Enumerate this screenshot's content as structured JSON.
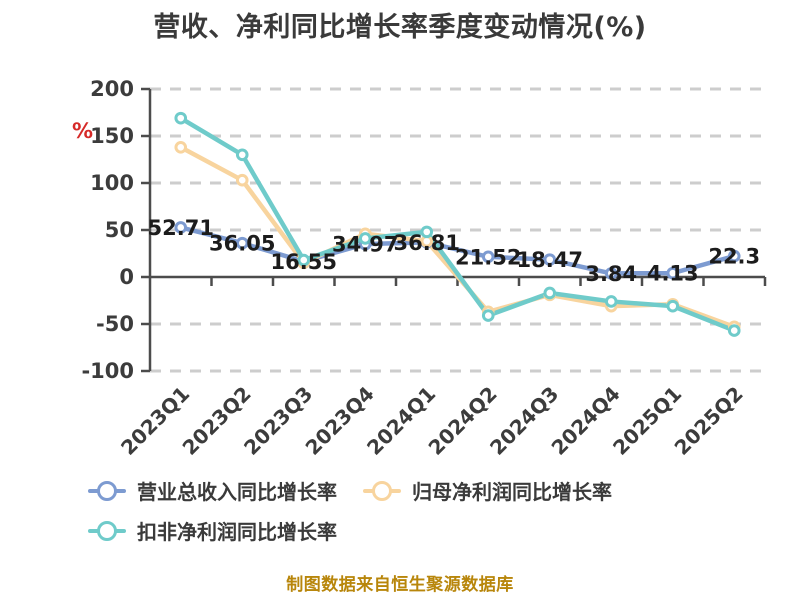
{
  "title": "营收、净利同比增长率季度变动情况(%)",
  "unit_marker": "%",
  "footer": "制图数据来自恒生聚源数据库",
  "colors": {
    "axis": "#4c4c4c",
    "grid": "#cdcdcd",
    "tick_text": "#3c3c3c",
    "data_label": "#1c1c1c",
    "title": "#3a3a3a",
    "footer": "#b8860b",
    "unit": "#d62a28",
    "dot_fill": "#ffffff"
  },
  "chart_data": {
    "type": "line",
    "title": "营收、净利同比增长率季度变动情况(%)",
    "xlabel": "",
    "ylabel": "%",
    "ylim": [
      -100,
      200
    ],
    "yticks": [
      200,
      150,
      100,
      50,
      0,
      -50,
      -100
    ],
    "grid": true,
    "grid_style": "dashed",
    "legend_position": "bottom",
    "categories": [
      "2023Q1",
      "2023Q2",
      "2023Q3",
      "2023Q4",
      "2024Q1",
      "2024Q2",
      "2024Q3",
      "2024Q4",
      "2025Q1",
      "2025Q2"
    ],
    "series": [
      {
        "key": "revenue-yoy",
        "name": "营业总收入同比增长率",
        "color": "#7d9bd1",
        "labels_shown": true,
        "values": [
          52.71,
          36.05,
          16.55,
          34.97,
          36.81,
          21.52,
          18.47,
          3.84,
          4.13,
          22.3
        ]
      },
      {
        "key": "net-profit-yoy",
        "name": "归母净利润同比增长率",
        "color": "#f8d49e",
        "labels_shown": false,
        "values": [
          138,
          103,
          15,
          46,
          38,
          -37,
          -19,
          -31,
          -29,
          -53
        ]
      },
      {
        "key": "non-gaap-net-profit-yoy",
        "name": "扣非净利润同比增长率",
        "color": "#6fcbca",
        "labels_shown": false,
        "values": [
          169,
          130,
          18,
          41,
          48,
          -41,
          -17,
          -26,
          -31,
          -57
        ]
      }
    ]
  }
}
